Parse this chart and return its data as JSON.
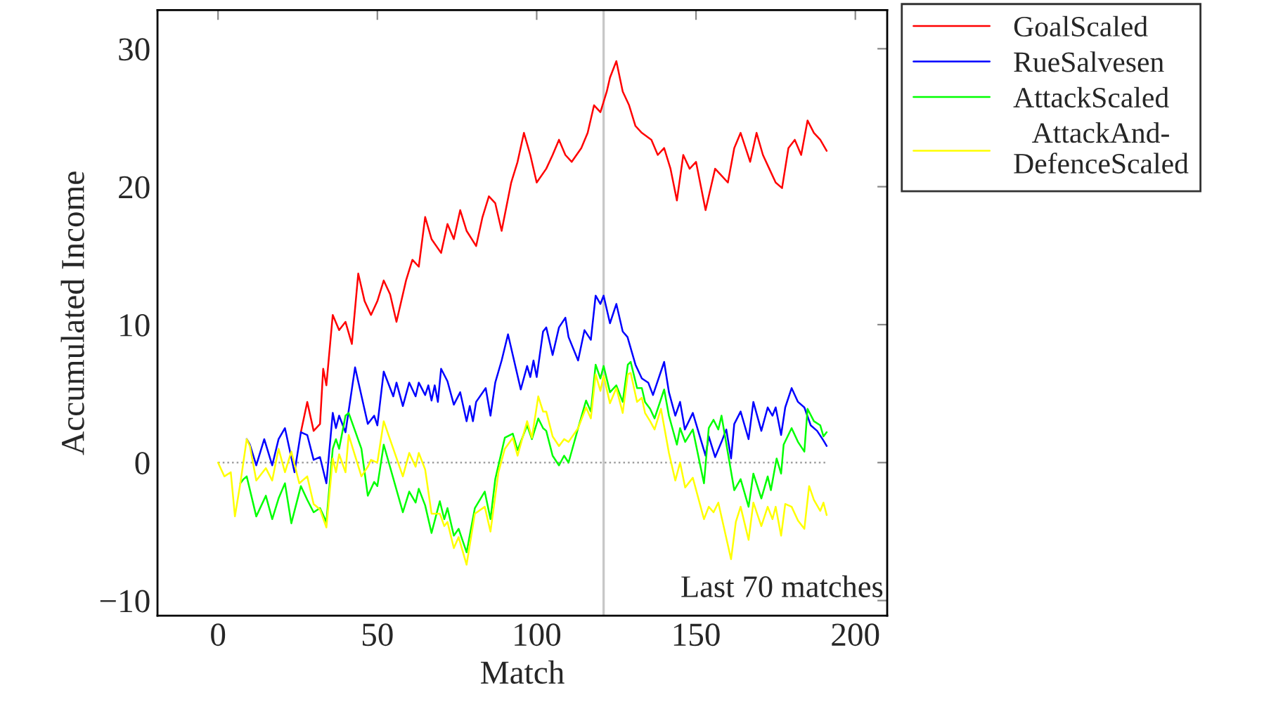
{
  "chart_data": {
    "type": "line",
    "xlabel": "Match",
    "ylabel": "Accumulated Income",
    "xlim": [
      -19,
      210
    ],
    "ylim": [
      -11.1,
      32.8
    ],
    "xticks": [
      0,
      50,
      100,
      150,
      200
    ],
    "yticks": [
      -10,
      0,
      10,
      20,
      30
    ],
    "legend": "top right",
    "line_style": "solid",
    "marker": "none",
    "ref_lines": [
      {
        "axis": "y",
        "value": 0,
        "color": "#a0a0a0",
        "line_style": "dotted"
      },
      {
        "axis": "x",
        "value": 121,
        "label": "Last 70 matches",
        "color": "#c8c8c8",
        "line_style": "solid"
      }
    ],
    "series": [
      {
        "name": "GoalScaled",
        "color": "#ff0000",
        "x": [
          26,
          28,
          30,
          32,
          33,
          34,
          36,
          38,
          40,
          42,
          44,
          46,
          48,
          50,
          52,
          54,
          56,
          59,
          61,
          63,
          65,
          67,
          70,
          72,
          74,
          76,
          78,
          81,
          83,
          85,
          87,
          89,
          92,
          94,
          96,
          98,
          100,
          103,
          105,
          107,
          109,
          111,
          114,
          116,
          118,
          120,
          122,
          123,
          125,
          127,
          129,
          131,
          133,
          136,
          138,
          140,
          142,
          144,
          146,
          148,
          150,
          153,
          156,
          158,
          160,
          162,
          164,
          167,
          169,
          171,
          173,
          175,
          177,
          179,
          181,
          183,
          185,
          187,
          189,
          191
        ],
        "values": [
          2.2,
          4.4,
          2.3,
          2.8,
          6.8,
          5.6,
          10.7,
          9.6,
          10.2,
          8.6,
          13.7,
          11.7,
          10.7,
          11.7,
          13.2,
          12.2,
          10.2,
          13.2,
          14.7,
          14.2,
          17.8,
          16.2,
          15.2,
          17.3,
          16.2,
          18.3,
          16.8,
          15.7,
          17.8,
          19.3,
          18.8,
          16.8,
          20.3,
          21.8,
          23.9,
          22.3,
          20.3,
          21.3,
          22.3,
          23.4,
          22.3,
          21.8,
          22.8,
          23.9,
          25.9,
          25.4,
          26.9,
          27.9,
          29.1,
          26.9,
          25.9,
          24.4,
          23.9,
          23.4,
          22.3,
          22.8,
          21.3,
          19.0,
          22.3,
          21.3,
          21.8,
          18.3,
          21.3,
          20.8,
          20.3,
          22.8,
          23.9,
          21.8,
          23.9,
          22.3,
          21.3,
          20.3,
          19.9,
          22.8,
          23.4,
          22.3,
          24.8,
          23.9,
          23.4,
          22.6
        ]
      },
      {
        "name": "RueSalvesen",
        "color": "#0000ff",
        "x": [
          9,
          10,
          12,
          14.5,
          17,
          19,
          21,
          24,
          26,
          28,
          30,
          32,
          34,
          36,
          37,
          38,
          40,
          43,
          47,
          49,
          50,
          52,
          55,
          56,
          58,
          60,
          62,
          63,
          65,
          66,
          67,
          68,
          69,
          70,
          72,
          74,
          76,
          78,
          79,
          80,
          81,
          84,
          85.5,
          87,
          89,
          91,
          95,
          97,
          98,
          99,
          100,
          102,
          103,
          105,
          107,
          109,
          110,
          113,
          115,
          117,
          118.5,
          120,
          121,
          123,
          125,
          127,
          128.5,
          131,
          133,
          135,
          136.5,
          140,
          141.5,
          143.5,
          145,
          146.5,
          149,
          153,
          154,
          156,
          158,
          159.5,
          161,
          162,
          164,
          166.5,
          168,
          170.5,
          172.5,
          174,
          175,
          176.7,
          178,
          180,
          182,
          184,
          186,
          188,
          190,
          191
        ],
        "values": [
          1.7,
          1.3,
          -0.2,
          1.7,
          -0.2,
          1.7,
          2.5,
          -0.7,
          2.2,
          2,
          0.2,
          0.4,
          -1.5,
          3.6,
          2.5,
          3.4,
          2.2,
          6.9,
          2.8,
          3.4,
          2.7,
          6.6,
          4.8,
          5.8,
          4.1,
          5.8,
          4.8,
          5.8,
          4.9,
          5.6,
          4.5,
          5.6,
          4.4,
          6.8,
          5.9,
          4.2,
          5.1,
          3.0,
          4.1,
          3.0,
          4.4,
          5.4,
          3.4,
          5.8,
          7.4,
          9.3,
          5.3,
          7.0,
          6.2,
          7.4,
          6.2,
          9.5,
          9.8,
          7.8,
          9.8,
          10.5,
          9.1,
          7.4,
          9.6,
          8.9,
          12.1,
          11.5,
          12.1,
          10.1,
          11.5,
          9.5,
          9.1,
          7.1,
          6.1,
          5.8,
          4.9,
          7.3,
          5.1,
          3.4,
          4.4,
          2.4,
          3.6,
          0.5,
          1.9,
          0.4,
          1.5,
          2.4,
          0.3,
          2.8,
          3.7,
          1.7,
          4.4,
          2.3,
          4.0,
          3.4,
          4.0,
          2.0,
          4.0,
          5.4,
          4.4,
          4.0,
          2.7,
          2.3,
          1.6,
          1.2
        ]
      },
      {
        "name": "AttackScaled",
        "color": "#00ff00",
        "x": [
          7,
          8,
          9,
          12,
          15,
          17,
          19,
          21,
          23,
          26,
          28,
          30,
          32,
          34,
          36,
          37,
          38,
          40,
          41,
          45,
          47,
          49,
          50,
          52,
          58,
          60,
          62,
          63,
          65,
          67,
          69.6,
          71,
          72,
          74,
          75.5,
          78,
          80.6,
          83.7,
          85.5,
          87,
          90,
          92.5,
          94,
          97,
          98.5,
          100.5,
          102,
          103,
          105,
          107,
          108.6,
          110,
          113,
          115.5,
          117,
          118.5,
          120,
          121,
          123,
          125,
          127,
          128.6,
          129.5,
          131.5,
          133,
          134,
          135.6,
          137,
          140,
          141.5,
          144,
          145,
          146.6,
          149,
          152.5,
          154,
          155.5,
          157,
          158,
          160,
          162,
          164,
          166.5,
          168,
          170.5,
          172.5,
          173.5,
          175.3,
          176.7,
          177.5,
          180,
          182,
          184,
          185,
          187,
          189,
          190,
          191
        ],
        "values": [
          -1.5,
          -1.2,
          -1,
          -3.9,
          -2.4,
          -4.1,
          -2.6,
          -1.5,
          -4.4,
          -1.7,
          -2.7,
          -3.6,
          -3.3,
          -4.3,
          1.0,
          1.7,
          1.0,
          3.4,
          3.6,
          1.0,
          -2.4,
          -1.4,
          -1.7,
          1.3,
          -3.6,
          -2.1,
          -2.9,
          -1.9,
          -3.1,
          -5.1,
          -2.8,
          -4.1,
          -3.3,
          -5.3,
          -4.8,
          -6.5,
          -3.3,
          -2.1,
          -4.1,
          -1.2,
          1.8,
          2.1,
          0.9,
          2.7,
          1.7,
          3.2,
          2.5,
          2.3,
          0.5,
          -0.2,
          0.5,
          0,
          2.5,
          4.5,
          3.7,
          7.1,
          6.1,
          7.0,
          5.1,
          5.6,
          4.4,
          7.1,
          7.3,
          5.4,
          5.4,
          4.4,
          3.9,
          3.2,
          5.3,
          3.4,
          1.3,
          2.5,
          1.5,
          2.4,
          -1.5,
          2.5,
          3.1,
          2.4,
          3.4,
          0.7,
          -2.0,
          -1.2,
          -3.2,
          -0.8,
          -2.6,
          -1.0,
          -2.0,
          0.3,
          -0.8,
          1.3,
          2.5,
          1.5,
          0.8,
          3.9,
          3.0,
          2.7,
          1.9,
          2.2
        ]
      },
      {
        "name": "AttackAnd-\nDefenceScaled",
        "color": "#ffff00",
        "x": [
          0,
          2,
          4,
          5.3,
          7,
          9,
          10,
          12,
          15,
          17,
          19,
          21,
          23,
          25.5,
          28,
          30,
          32,
          34,
          36,
          37,
          38,
          40,
          41,
          45,
          47,
          48,
          50,
          52,
          55,
          58,
          60,
          62,
          63,
          65,
          67,
          69.6,
          71,
          72,
          74,
          75.5,
          78,
          80.6,
          83.7,
          85.5,
          88,
          90,
          92.5,
          94,
          97,
          98.5,
          100.5,
          102,
          103,
          105,
          107,
          108.6,
          110,
          113,
          115.5,
          117,
          118.5,
          120,
          121,
          123,
          125,
          127,
          128.6,
          129.5,
          131.5,
          133,
          134,
          135.6,
          137,
          139,
          141.5,
          143.5,
          145,
          146.6,
          149,
          152.5,
          154,
          155.5,
          157,
          161,
          162.5,
          164,
          166.5,
          168,
          170.5,
          172.5,
          174,
          175,
          176.7,
          178,
          180,
          182,
          184,
          185.5,
          187,
          189,
          190,
          191
        ],
        "values": [
          0,
          -1,
          -0.7,
          -3.9,
          -1.5,
          1.7,
          1.2,
          -1.3,
          -0.4,
          -1.3,
          1.0,
          -0.7,
          0.8,
          -1.5,
          -1.0,
          -3.0,
          -3.4,
          -4.7,
          0.3,
          -0.7,
          0.6,
          -0.7,
          2.0,
          -1.0,
          -0.3,
          0.2,
          0,
          3.0,
          1.0,
          -1.0,
          0.7,
          -0.3,
          0.7,
          -0.5,
          -3.7,
          -3.7,
          -4.6,
          -4.3,
          -6.2,
          -5.4,
          -7.4,
          -3.7,
          -3.2,
          -5.0,
          -0.7,
          1.0,
          1.8,
          0.5,
          3.0,
          1.8,
          4.8,
          3.7,
          3.7,
          1.9,
          1.2,
          1.7,
          1.5,
          2.5,
          4.0,
          3.2,
          6.4,
          5.2,
          6.3,
          4.3,
          5.4,
          3.6,
          6.4,
          6.5,
          4.4,
          4.7,
          3.6,
          3.0,
          2.4,
          3.9,
          0.7,
          -1.3,
          0.0,
          -1.8,
          -1.1,
          -4.1,
          -3.2,
          -3.6,
          -2.9,
          -7.0,
          -4.3,
          -3.2,
          -5.6,
          -2.9,
          -4.6,
          -3.2,
          -4.1,
          -3.2,
          -5.3,
          -3.0,
          -3.2,
          -4.2,
          -4.8,
          -1.7,
          -2.7,
          -3.5,
          -2.9,
          -3.8
        ]
      }
    ]
  }
}
